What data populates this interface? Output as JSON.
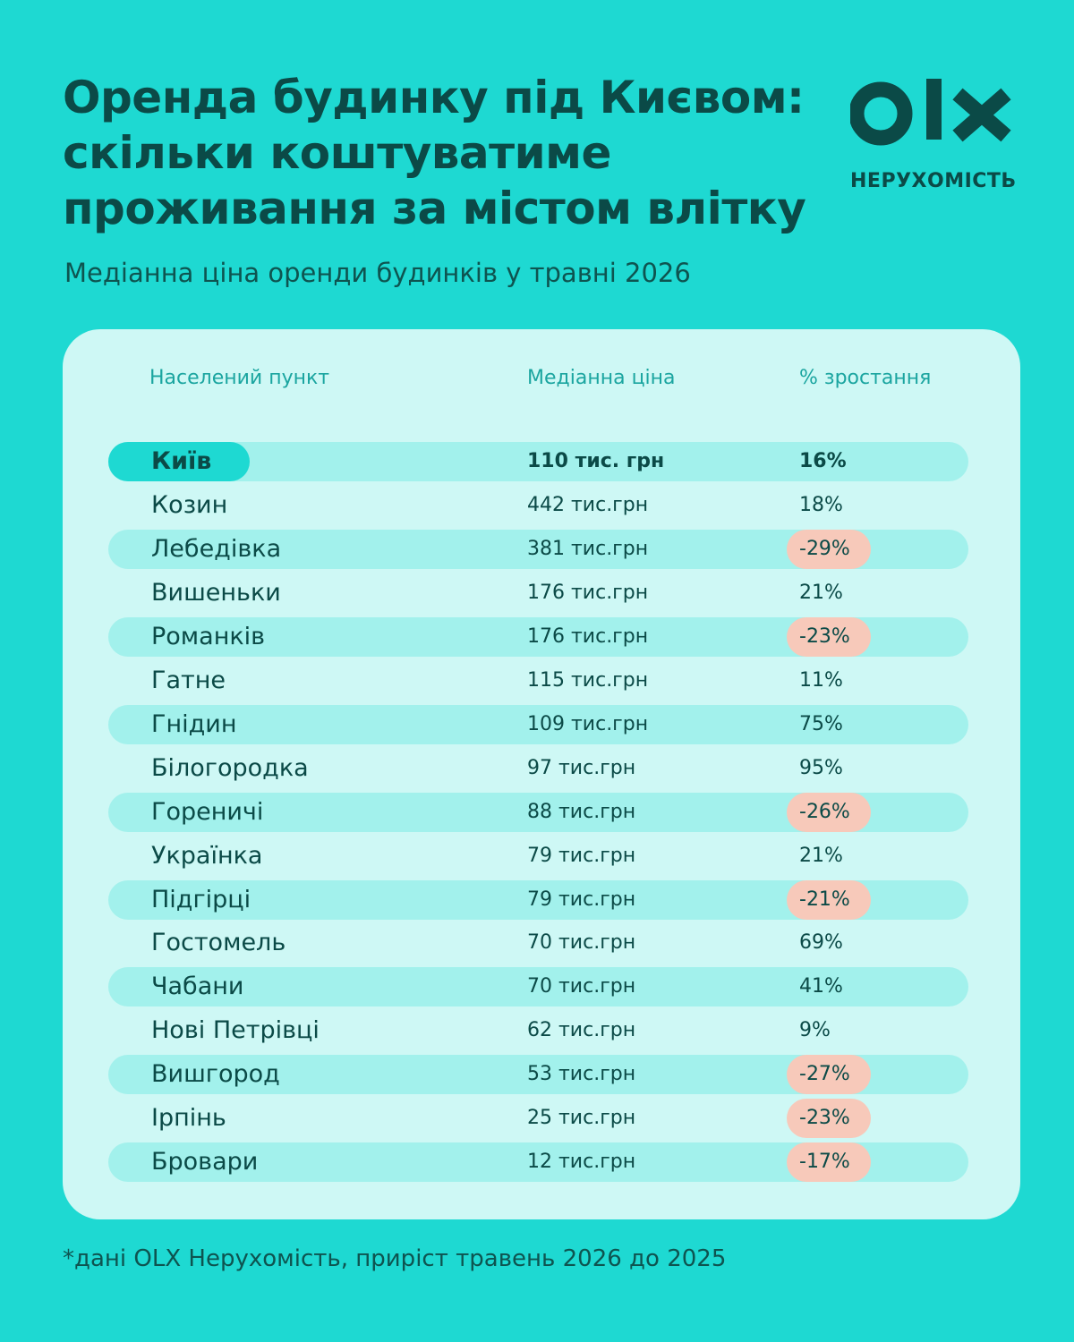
{
  "title_lines": [
    "Оренда будинку під Києвом:",
    "скільки коштуватиме",
    "проживання за містом влітку"
  ],
  "subtitle": "Медіанна ціна оренди будинків у травні 2026",
  "logo": {
    "text": "OLX",
    "caption": "НЕРУХОМІСТЬ"
  },
  "colors": {
    "background": "#1ed9d2",
    "card": "#cef8f5",
    "row_stripe": "#a2f1ec",
    "text": "#0b4a47",
    "header_text": "#1ba5a0",
    "negative_highlight": "#f7c9ba"
  },
  "chart_data": {
    "type": "table",
    "columns": [
      "Населений пункт",
      "Медіанна ціна",
      "% зростання"
    ],
    "rows": [
      {
        "city": "Київ",
        "price": "110 тис. грн",
        "growth": "16%",
        "growth_value": 16
      },
      {
        "city": "Козин",
        "price": "442 тис.грн",
        "growth": "18%",
        "growth_value": 18
      },
      {
        "city": "Лебедівка",
        "price": "381 тис.грн",
        "growth": "-29%",
        "growth_value": -29
      },
      {
        "city": "Вишеньки",
        "price": "176 тис.грн",
        "growth": "21%",
        "growth_value": 21
      },
      {
        "city": "Романків",
        "price": "176 тис.грн",
        "growth": "-23%",
        "growth_value": -23
      },
      {
        "city": "Гатне",
        "price": "115 тис.грн",
        "growth": "11%",
        "growth_value": 11
      },
      {
        "city": "Гнідин",
        "price": "109 тис.грн",
        "growth": "75%",
        "growth_value": 75
      },
      {
        "city": "Білогородка",
        "price": "97 тис.грн",
        "growth": "95%",
        "growth_value": 95
      },
      {
        "city": "Гореничі",
        "price": "88 тис.грн",
        "growth": "-26%",
        "growth_value": -26
      },
      {
        "city": "Українка",
        "price": "79 тис.грн",
        "growth": "21%",
        "growth_value": 21
      },
      {
        "city": "Підгірці",
        "price": "79 тис.грн",
        "growth": "-21%",
        "growth_value": -21
      },
      {
        "city": "Гостомель",
        "price": "70 тис.грн",
        "growth": "69%",
        "growth_value": 69
      },
      {
        "city": "Чабани",
        "price": "70 тис.грн",
        "growth": "41%",
        "growth_value": 41
      },
      {
        "city": "Нові Петрівці",
        "price": "62 тис.грн",
        "growth": "9%",
        "growth_value": 9
      },
      {
        "city": "Вишгород",
        "price": "53 тис.грн",
        "growth": "-27%",
        "growth_value": -27
      },
      {
        "city": "Ірпінь",
        "price": "25 тис.грн",
        "growth": "-23%",
        "growth_value": -23
      },
      {
        "city": "Бровари",
        "price": "12 тис.грн",
        "growth": "-17%",
        "growth_value": -17
      }
    ]
  },
  "footnote": "*дані OLX Нерухомість, приріст травень 2026 до 2025"
}
